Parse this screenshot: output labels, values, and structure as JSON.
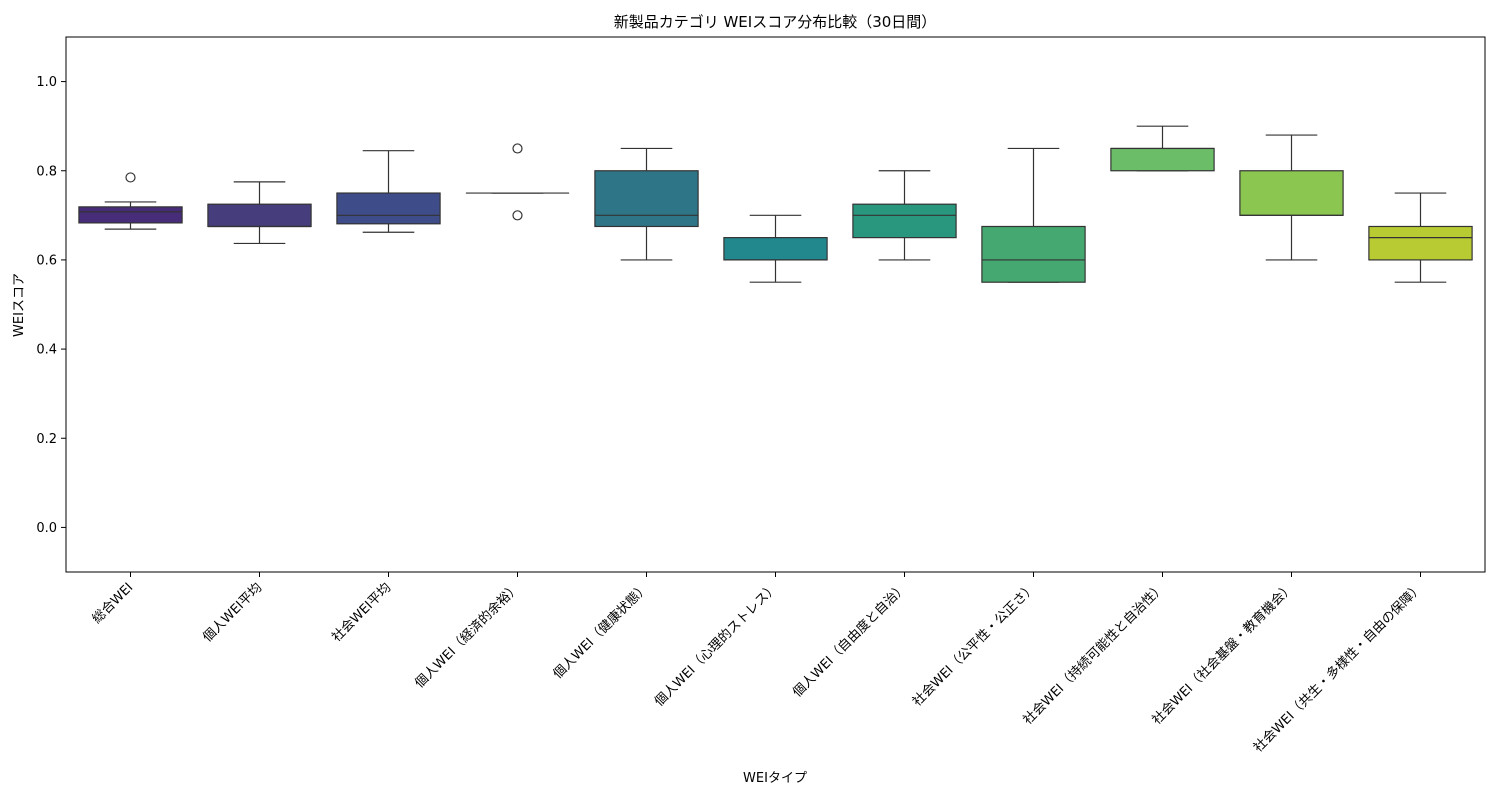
{
  "chart_data": {
    "type": "box",
    "title": "新製品カテゴリ WEIスコア分布比較（30日間）",
    "xlabel": "WEIタイプ",
    "ylabel": "WEIスコア",
    "ylim": [
      -0.1,
      1.1
    ],
    "yticks": [
      "0.0",
      "0.2",
      "0.4",
      "0.6",
      "0.8",
      "1.0"
    ],
    "grid": false,
    "categories": [
      "総合WEI",
      "個人WEI平均",
      "社会WEI平均",
      "個人WEI（経済的余裕）",
      "個人WEI（健康状態）",
      "個人WEI（心理的ストレス）",
      "個人WEI（自由度と自治）",
      "社会WEI（公平性・公正さ）",
      "社会WEI（持続可能性と自治性）",
      "社会WEI（社会基盤・教育機会）",
      "社会WEI（共生・多様性・自由の保障）"
    ],
    "boxes": [
      {
        "whisker_low": 0.669,
        "q1": 0.683,
        "median": 0.708,
        "q3": 0.719,
        "whisker_high": 0.73,
        "outliers": [
          0.785
        ],
        "color": "#472c7a"
      },
      {
        "whisker_low": 0.637,
        "q1": 0.675,
        "median": 0.675,
        "q3": 0.725,
        "whisker_high": 0.775,
        "outliers": [],
        "color": "#463e7c"
      },
      {
        "whisker_low": 0.662,
        "q1": 0.681,
        "median": 0.7,
        "q3": 0.75,
        "whisker_high": 0.845,
        "outliers": [],
        "color": "#3e4c8a"
      },
      {
        "whisker_low": 0.75,
        "q1": 0.75,
        "median": 0.75,
        "q3": 0.75,
        "whisker_high": 0.75,
        "outliers": [
          0.85,
          0.7
        ],
        "color": "#32658e"
      },
      {
        "whisker_low": 0.6,
        "q1": 0.675,
        "median": 0.7,
        "q3": 0.8,
        "whisker_high": 0.85,
        "outliers": [],
        "color": "#2e7587"
      },
      {
        "whisker_low": 0.55,
        "q1": 0.6,
        "median": 0.6,
        "q3": 0.65,
        "whisker_high": 0.7,
        "outliers": [],
        "color": "#23888e"
      },
      {
        "whisker_low": 0.6,
        "q1": 0.65,
        "median": 0.7,
        "q3": 0.725,
        "whisker_high": 0.8,
        "outliers": [],
        "color": "#29977e"
      },
      {
        "whisker_low": 0.55,
        "q1": 0.55,
        "median": 0.6,
        "q3": 0.675,
        "whisker_high": 0.85,
        "outliers": [],
        "color": "#44a870"
      },
      {
        "whisker_low": 0.8,
        "q1": 0.8,
        "median": 0.85,
        "q3": 0.85,
        "whisker_high": 0.9,
        "outliers": [],
        "color": "#6cbd68"
      },
      {
        "whisker_low": 0.6,
        "q1": 0.7,
        "median": 0.7,
        "q3": 0.8,
        "whisker_high": 0.88,
        "outliers": [],
        "color": "#8ac650"
      },
      {
        "whisker_low": 0.55,
        "q1": 0.6,
        "median": 0.65,
        "q3": 0.675,
        "whisker_high": 0.75,
        "outliers": [],
        "color": "#b8cb32"
      }
    ]
  }
}
